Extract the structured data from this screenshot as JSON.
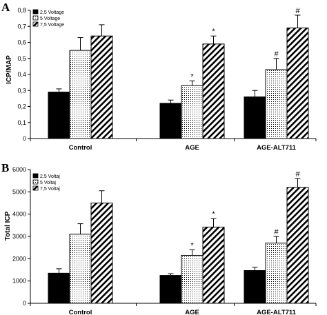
{
  "chart_data": [
    {
      "type": "bar",
      "panel_label": "A",
      "ylabel": "ICP/MAP",
      "ylim": [
        0,
        0.8
      ],
      "yticks": [
        "0",
        "0,1",
        "0,2",
        "0,3",
        "0,4",
        "0,5",
        "0,6",
        "0,7",
        "0,8"
      ],
      "ytick_values": [
        0,
        0.1,
        0.2,
        0.3,
        0.4,
        0.5,
        0.6,
        0.7,
        0.8
      ],
      "categories": [
        "Control",
        "AGE",
        "AGE-ALT711"
      ],
      "legend_position": "top-left",
      "series": [
        {
          "name": "2,5 Voltage",
          "pattern": "solid",
          "values": [
            0.29,
            0.22,
            0.26
          ],
          "errors": [
            0.02,
            0.02,
            0.04
          ],
          "marks": [
            "",
            "",
            ""
          ]
        },
        {
          "name": "5 Voltage",
          "pattern": "dots",
          "values": [
            0.55,
            0.33,
            0.43
          ],
          "errors": [
            0.08,
            0.03,
            0.07
          ],
          "marks": [
            "",
            "*",
            "#"
          ]
        },
        {
          "name": "7,5 Voltage",
          "pattern": "stripes",
          "values": [
            0.64,
            0.59,
            0.69
          ],
          "errors": [
            0.07,
            0.05,
            0.08
          ],
          "marks": [
            "",
            "*",
            "#"
          ]
        }
      ]
    },
    {
      "type": "bar",
      "panel_label": "B",
      "ylabel": "Total ICP",
      "ylim": [
        0,
        6000
      ],
      "yticks": [
        "0",
        "1000",
        "2000",
        "3000",
        "4000",
        "5000",
        "6000"
      ],
      "ytick_values": [
        0,
        1000,
        2000,
        3000,
        4000,
        5000,
        6000
      ],
      "categories": [
        "Control",
        "AGE",
        "AGE-ALT711"
      ],
      "legend_position": "top-left",
      "series": [
        {
          "name": "2,5 Voltaj",
          "pattern": "solid",
          "values": [
            1350,
            1250,
            1470
          ],
          "errors": [
            200,
            80,
            150
          ],
          "marks": [
            "",
            "",
            ""
          ]
        },
        {
          "name": "5 Voltaj",
          "pattern": "dots",
          "values": [
            3100,
            2150,
            2700
          ],
          "errors": [
            470,
            250,
            300
          ],
          "marks": [
            "",
            "*",
            "#"
          ]
        },
        {
          "name": "7,5 Voltaj",
          "pattern": "stripes",
          "values": [
            4500,
            3420,
            5200
          ],
          "errors": [
            550,
            380,
            400
          ],
          "marks": [
            "",
            "*",
            "#"
          ]
        }
      ]
    }
  ]
}
